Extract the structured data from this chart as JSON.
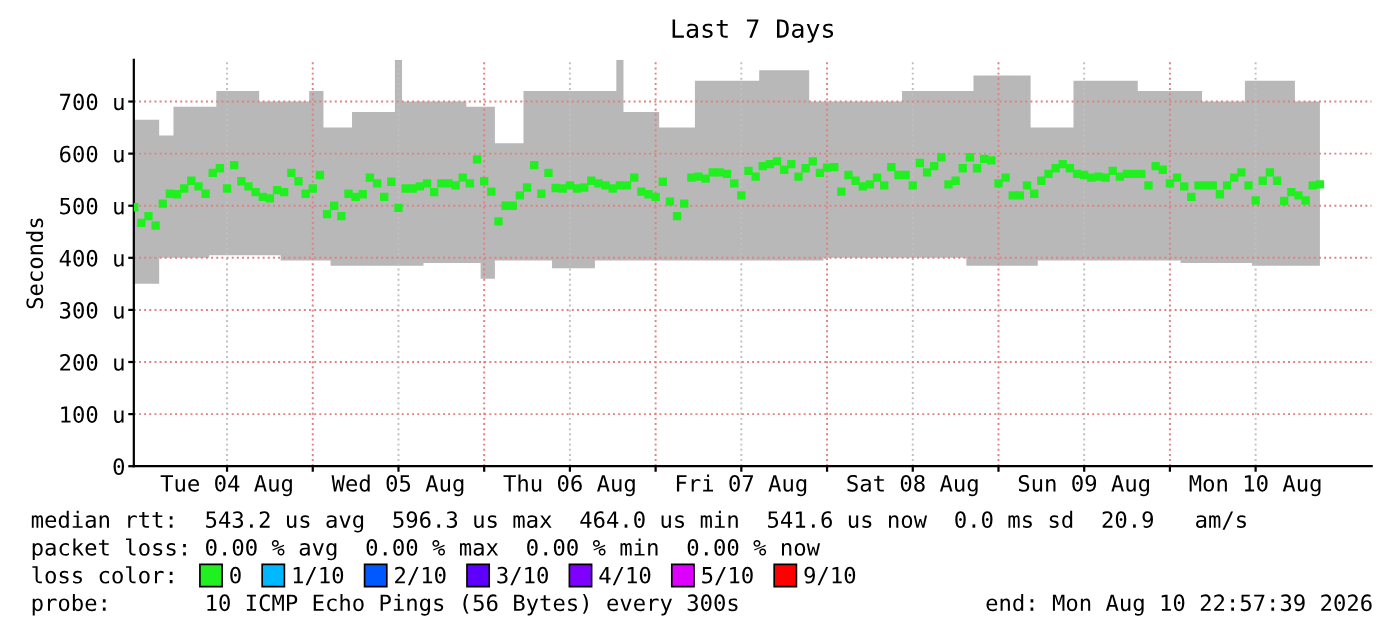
{
  "chart_data": {
    "type": "scatter",
    "title": "Last 7 Days",
    "ylabel": "Seconds",
    "x": [
      "2026-08-03T23:00",
      "2026-08-04T00:00",
      "2026-08-04T01:00",
      "2026-08-04T02:00",
      "2026-08-04T03:00",
      "2026-08-04T04:00",
      "2026-08-04T05:00",
      "2026-08-04T06:00",
      "2026-08-04T07:00",
      "2026-08-04T08:00",
      "2026-08-04T09:00",
      "2026-08-04T10:00",
      "2026-08-04T11:00",
      "2026-08-04T12:00",
      "2026-08-04T13:00",
      "2026-08-04T14:00",
      "2026-08-04T15:00",
      "2026-08-04T16:00",
      "2026-08-04T17:00",
      "2026-08-04T18:00",
      "2026-08-04T19:00",
      "2026-08-04T20:00",
      "2026-08-04T21:00",
      "2026-08-04T22:00",
      "2026-08-04T23:00",
      "2026-08-05T00:00",
      "2026-08-05T01:00",
      "2026-08-05T02:00",
      "2026-08-05T03:00",
      "2026-08-05T04:00",
      "2026-08-05T05:00",
      "2026-08-05T06:00",
      "2026-08-05T07:00",
      "2026-08-05T08:00",
      "2026-08-05T09:00",
      "2026-08-05T10:00",
      "2026-08-05T11:00",
      "2026-08-05T12:00",
      "2026-08-05T13:00",
      "2026-08-05T14:00",
      "2026-08-05T15:00",
      "2026-08-05T16:00",
      "2026-08-05T17:00",
      "2026-08-05T18:00",
      "2026-08-05T19:00",
      "2026-08-05T20:00",
      "2026-08-05T21:00",
      "2026-08-05T22:00",
      "2026-08-05T23:00",
      "2026-08-06T00:00",
      "2026-08-06T01:00",
      "2026-08-06T02:00",
      "2026-08-06T03:00",
      "2026-08-06T04:00",
      "2026-08-06T05:00",
      "2026-08-06T06:00",
      "2026-08-06T07:00",
      "2026-08-06T08:00",
      "2026-08-06T09:00",
      "2026-08-06T10:00",
      "2026-08-06T11:00",
      "2026-08-06T12:00",
      "2026-08-06T13:00",
      "2026-08-06T14:00",
      "2026-08-06T15:00",
      "2026-08-06T16:00",
      "2026-08-06T17:00",
      "2026-08-06T18:00",
      "2026-08-06T19:00",
      "2026-08-06T20:00",
      "2026-08-06T21:00",
      "2026-08-06T22:00",
      "2026-08-06T23:00",
      "2026-08-07T00:00",
      "2026-08-07T01:00",
      "2026-08-07T02:00",
      "2026-08-07T03:00",
      "2026-08-07T04:00",
      "2026-08-07T05:00",
      "2026-08-07T06:00",
      "2026-08-07T07:00",
      "2026-08-07T08:00",
      "2026-08-07T09:00",
      "2026-08-07T10:00",
      "2026-08-07T11:00",
      "2026-08-07T12:00",
      "2026-08-07T13:00",
      "2026-08-07T14:00",
      "2026-08-07T15:00",
      "2026-08-07T16:00",
      "2026-08-07T17:00",
      "2026-08-07T18:00",
      "2026-08-07T19:00",
      "2026-08-07T20:00",
      "2026-08-07T21:00",
      "2026-08-07T22:00",
      "2026-08-07T23:00",
      "2026-08-08T00:00",
      "2026-08-08T01:00",
      "2026-08-08T02:00",
      "2026-08-08T03:00",
      "2026-08-08T04:00",
      "2026-08-08T05:00",
      "2026-08-08T06:00",
      "2026-08-08T07:00",
      "2026-08-08T08:00",
      "2026-08-08T09:00",
      "2026-08-08T10:00",
      "2026-08-08T11:00",
      "2026-08-08T12:00",
      "2026-08-08T13:00",
      "2026-08-08T14:00",
      "2026-08-08T15:00",
      "2026-08-08T16:00",
      "2026-08-08T17:00",
      "2026-08-08T18:00",
      "2026-08-08T19:00",
      "2026-08-08T20:00",
      "2026-08-08T21:00",
      "2026-08-08T22:00",
      "2026-08-08T23:00",
      "2026-08-09T00:00",
      "2026-08-09T01:00",
      "2026-08-09T02:00",
      "2026-08-09T03:00",
      "2026-08-09T04:00",
      "2026-08-09T05:00",
      "2026-08-09T06:00",
      "2026-08-09T07:00",
      "2026-08-09T08:00",
      "2026-08-09T09:00",
      "2026-08-09T10:00",
      "2026-08-09T11:00",
      "2026-08-09T12:00",
      "2026-08-09T13:00",
      "2026-08-09T14:00",
      "2026-08-09T15:00",
      "2026-08-09T16:00",
      "2026-08-09T17:00",
      "2026-08-09T18:00",
      "2026-08-09T19:00",
      "2026-08-09T20:00",
      "2026-08-09T21:00",
      "2026-08-09T22:00",
      "2026-08-09T23:00",
      "2026-08-10T00:00",
      "2026-08-10T01:00",
      "2026-08-10T02:00",
      "2026-08-10T03:00",
      "2026-08-10T04:00",
      "2026-08-10T05:00",
      "2026-08-10T06:00",
      "2026-08-10T07:00",
      "2026-08-10T08:00",
      "2026-08-10T09:00",
      "2026-08-10T10:00",
      "2026-08-10T11:00",
      "2026-08-10T12:00",
      "2026-08-10T13:00",
      "2026-08-10T14:00",
      "2026-08-10T15:00",
      "2026-08-10T16:00",
      "2026-08-10T17:00",
      "2026-08-10T18:00",
      "2026-08-10T19:00",
      "2026-08-10T20:00",
      "2026-08-10T21:00"
    ],
    "series": [
      {
        "name": "0",
        "color": "#20f020",
        "values": [
          497,
          467,
          480,
          462,
          504,
          523,
          522,
          533,
          548,
          537,
          523,
          563,
          572,
          533,
          578,
          547,
          537,
          526,
          517,
          514,
          530,
          526,
          563,
          547,
          523,
          533,
          559,
          484,
          500,
          480,
          523,
          517,
          522,
          554,
          543,
          517,
          546,
          496,
          533,
          533,
          537,
          543,
          526,
          543,
          543,
          539,
          554,
          543,
          589,
          547,
          527,
          470,
          500,
          500,
          520,
          535,
          578,
          523,
          563,
          534,
          533,
          539,
          533,
          535,
          548,
          543,
          539,
          533,
          539,
          539,
          554,
          527,
          522,
          517,
          546,
          508,
          480,
          504,
          554,
          556,
          552,
          564,
          564,
          561,
          543,
          520,
          567,
          556,
          576,
          580,
          585,
          569,
          580,
          556,
          572,
          585,
          563,
          573,
          574,
          527,
          559,
          548,
          537,
          541,
          554,
          539,
          574,
          559,
          559,
          539,
          582,
          564,
          576,
          593,
          541,
          548,
          572,
          593,
          572,
          590,
          587,
          543,
          554,
          520,
          520,
          539,
          523,
          548,
          561,
          572,
          580,
          572,
          561,
          559,
          554,
          556,
          554,
          567,
          556,
          561,
          561,
          561,
          539,
          576,
          569,
          543,
          554,
          537,
          517,
          539,
          539,
          539,
          522,
          539,
          554,
          564,
          539,
          510,
          548,
          564,
          548,
          509,
          526,
          520,
          510,
          539,
          541
        ],
        "lower": [
          350,
          350,
          350,
          350,
          400,
          400,
          400,
          400,
          400,
          400,
          400,
          405,
          405,
          405,
          405,
          405,
          405,
          405,
          405,
          405,
          405,
          395,
          395,
          395,
          395,
          395,
          395,
          395,
          385,
          385,
          385,
          385,
          385,
          385,
          385,
          385,
          385,
          385,
          385,
          385,
          385,
          390,
          390,
          390,
          390,
          390,
          390,
          390,
          390,
          360,
          360,
          395,
          395,
          395,
          395,
          395,
          395,
          395,
          395,
          380,
          380,
          380,
          380,
          380,
          380,
          395,
          395,
          395,
          395,
          395,
          395,
          395,
          395,
          395,
          395,
          395,
          395,
          395,
          395,
          395,
          395,
          395,
          395,
          395,
          395,
          395,
          395,
          395,
          395,
          395,
          395,
          395,
          395,
          395,
          395,
          395,
          395,
          400,
          400,
          400,
          400,
          400,
          400,
          400,
          400,
          400,
          400,
          400,
          400,
          400,
          400,
          400,
          400,
          400,
          400,
          400,
          400,
          385,
          385,
          385,
          385,
          385,
          385,
          385,
          385,
          385,
          385,
          395,
          395,
          395,
          395,
          395,
          395,
          395,
          395,
          395,
          395,
          395,
          395,
          395,
          395,
          395,
          395,
          395,
          395,
          395,
          395,
          390,
          390,
          390,
          390,
          390,
          390,
          390,
          390,
          390,
          390,
          385,
          385,
          385,
          385,
          385,
          385,
          385,
          385,
          385,
          385
        ],
        "upper": [
          665,
          665,
          665,
          665,
          635,
          635,
          690,
          690,
          690,
          690,
          690,
          690,
          720,
          720,
          720,
          720,
          720,
          720,
          700,
          700,
          700,
          700,
          700,
          700,
          700,
          720,
          720,
          650,
          650,
          650,
          650,
          680,
          680,
          680,
          680,
          680,
          680,
          780,
          700,
          700,
          700,
          700,
          700,
          700,
          700,
          700,
          700,
          690,
          690,
          690,
          690,
          620,
          620,
          620,
          620,
          720,
          720,
          720,
          720,
          720,
          720,
          720,
          720,
          720,
          720,
          720,
          720,
          720,
          780,
          680,
          680,
          680,
          680,
          680,
          650,
          650,
          650,
          650,
          650,
          740,
          740,
          740,
          740,
          740,
          740,
          740,
          740,
          740,
          760,
          760,
          760,
          760,
          760,
          760,
          760,
          700,
          700,
          700,
          700,
          700,
          700,
          700,
          700,
          700,
          700,
          700,
          700,
          700,
          720,
          720,
          720,
          720,
          720,
          720,
          720,
          720,
          720,
          720,
          750,
          750,
          750,
          750,
          750,
          750,
          750,
          750,
          650,
          650,
          650,
          650,
          650,
          650,
          740,
          740,
          740,
          740,
          740,
          740,
          740,
          740,
          740,
          720,
          720,
          720,
          720,
          720,
          720,
          720,
          720,
          720,
          700,
          700,
          700,
          700,
          700,
          700,
          740,
          740,
          740,
          740,
          740,
          740,
          740,
          700,
          700,
          700,
          700
        ]
      },
      {
        "name": "1/10",
        "color": "#00b8ff",
        "values": [
          null,
          null,
          null,
          null,
          null,
          null,
          null,
          null,
          null,
          null,
          null,
          null,
          null,
          null,
          null,
          null,
          null,
          null,
          null,
          null,
          null,
          null,
          null,
          null,
          null,
          null,
          null,
          null,
          null,
          null,
          null,
          null,
          null,
          null,
          null,
          null,
          null,
          null,
          null,
          null,
          null,
          null,
          null,
          null,
          null,
          null,
          null,
          null,
          null,
          null,
          null,
          null,
          null,
          null,
          null,
          null,
          null,
          null,
          null,
          null,
          null,
          null,
          null,
          null,
          null,
          null,
          null,
          null,
          null,
          null,
          null,
          null,
          null,
          null,
          null,
          null,
          null,
          null,
          null,
          null,
          null,
          null,
          null,
          null,
          null,
          null,
          null,
          null,
          null,
          null,
          null,
          null,
          null,
          null,
          null,
          null,
          null,
          null,
          null,
          null,
          null,
          null,
          null,
          null,
          null,
          null,
          null,
          null,
          null,
          null,
          null,
          null,
          null,
          null,
          null,
          null,
          null,
          null,
          null,
          null,
          null,
          null,
          null,
          null,
          null,
          null,
          null,
          null,
          null,
          null,
          null,
          null,
          null,
          null,
          null,
          null,
          null,
          null,
          null,
          null,
          null,
          null,
          null,
          null,
          null,
          null,
          null,
          null,
          null,
          null,
          null,
          null,
          null,
          null,
          null,
          null,
          null,
          null,
          null,
          null,
          null,
          null,
          null,
          null,
          null,
          null,
          null
        ]
      },
      {
        "name": "2/10",
        "color": "#0059ff",
        "values": [
          null,
          null,
          null,
          null,
          null,
          null,
          null,
          null,
          null,
          null,
          null,
          null,
          null,
          null,
          null,
          null,
          null,
          null,
          null,
          null,
          null,
          null,
          null,
          null,
          null,
          null,
          null,
          null,
          null,
          null,
          null,
          null,
          null,
          null,
          null,
          null,
          null,
          null,
          null,
          null,
          null,
          null,
          null,
          null,
          null,
          null,
          null,
          null,
          null,
          null,
          null,
          null,
          null,
          null,
          null,
          null,
          null,
          null,
          null,
          null,
          null,
          null,
          null,
          null,
          null,
          null,
          null,
          null,
          null,
          null,
          null,
          null,
          null,
          null,
          null,
          null,
          null,
          null,
          null,
          null,
          null,
          null,
          null,
          null,
          null,
          null,
          null,
          null,
          null,
          null,
          null,
          null,
          null,
          null,
          null,
          null,
          null,
          null,
          null,
          null,
          null,
          null,
          null,
          null,
          null,
          null,
          null,
          null,
          null,
          null,
          null,
          null,
          null,
          null,
          null,
          null,
          null,
          null,
          null,
          null,
          null,
          null,
          null,
          null,
          null,
          null,
          null,
          null,
          null,
          null,
          null,
          null,
          null,
          null,
          null,
          null,
          null,
          null,
          null,
          null,
          null,
          null,
          null,
          null,
          null,
          null,
          null,
          null,
          null,
          null,
          null,
          null,
          null,
          null,
          null,
          null,
          null,
          null,
          null,
          null,
          null,
          null,
          null,
          null,
          null,
          null,
          null
        ]
      },
      {
        "name": "3/10",
        "color": "#5e00ff",
        "values": [
          null,
          null,
          null,
          null,
          null,
          null,
          null,
          null,
          null,
          null,
          null,
          null,
          null,
          null,
          null,
          null,
          null,
          null,
          null,
          null,
          null,
          null,
          null,
          null,
          null,
          null,
          null,
          null,
          null,
          null,
          null,
          null,
          null,
          null,
          null,
          null,
          null,
          null,
          null,
          null,
          null,
          null,
          null,
          null,
          null,
          null,
          null,
          null,
          null,
          null,
          null,
          null,
          null,
          null,
          null,
          null,
          null,
          null,
          null,
          null,
          null,
          null,
          null,
          null,
          null,
          null,
          null,
          null,
          null,
          null,
          null,
          null,
          null,
          null,
          null,
          null,
          null,
          null,
          null,
          null,
          null,
          null,
          null,
          null,
          null,
          null,
          null,
          null,
          null,
          null,
          null,
          null,
          null,
          null,
          null,
          null,
          null,
          null,
          null,
          null,
          null,
          null,
          null,
          null,
          null,
          null,
          null,
          null,
          null,
          null,
          null,
          null,
          null,
          null,
          null,
          null,
          null,
          null,
          null,
          null,
          null,
          null,
          null,
          null,
          null,
          null,
          null,
          null,
          null,
          null,
          null,
          null,
          null,
          null,
          null,
          null,
          null,
          null,
          null,
          null,
          null,
          null,
          null,
          null,
          null,
          null,
          null,
          null,
          null,
          null,
          null,
          null,
          null,
          null,
          null,
          null,
          null,
          null,
          null,
          null,
          null,
          null,
          null,
          null,
          null,
          null,
          null
        ]
      },
      {
        "name": "4/10",
        "color": "#7e00ff",
        "values": [
          null,
          null,
          null,
          null,
          null,
          null,
          null,
          null,
          null,
          null,
          null,
          null,
          null,
          null,
          null,
          null,
          null,
          null,
          null,
          null,
          null,
          null,
          null,
          null,
          null,
          null,
          null,
          null,
          null,
          null,
          null,
          null,
          null,
          null,
          null,
          null,
          null,
          null,
          null,
          null,
          null,
          null,
          null,
          null,
          null,
          null,
          null,
          null,
          null,
          null,
          null,
          null,
          null,
          null,
          null,
          null,
          null,
          null,
          null,
          null,
          null,
          null,
          null,
          null,
          null,
          null,
          null,
          null,
          null,
          null,
          null,
          null,
          null,
          null,
          null,
          null,
          null,
          null,
          null,
          null,
          null,
          null,
          null,
          null,
          null,
          null,
          null,
          null,
          null,
          null,
          null,
          null,
          null,
          null,
          null,
          null,
          null,
          null,
          null,
          null,
          null,
          null,
          null,
          null,
          null,
          null,
          null,
          null,
          null,
          null,
          null,
          null,
          null,
          null,
          null,
          null,
          null,
          null,
          null,
          null,
          null,
          null,
          null,
          null,
          null,
          null,
          null,
          null,
          null,
          null,
          null,
          null,
          null,
          null,
          null,
          null,
          null,
          null,
          null,
          null,
          null,
          null,
          null,
          null,
          null,
          null,
          null,
          null,
          null,
          null,
          null,
          null,
          null,
          null,
          null,
          null,
          null,
          null,
          null,
          null,
          null,
          null,
          null,
          null,
          null,
          null,
          null
        ]
      },
      {
        "name": "5/10",
        "color": "#dd00ff",
        "values": [
          null,
          null,
          null,
          null,
          null,
          null,
          null,
          null,
          null,
          null,
          null,
          null,
          null,
          null,
          null,
          null,
          null,
          null,
          null,
          null,
          null,
          null,
          null,
          null,
          null,
          null,
          null,
          null,
          null,
          null,
          null,
          null,
          null,
          null,
          null,
          null,
          null,
          null,
          null,
          null,
          null,
          null,
          null,
          null,
          null,
          null,
          null,
          null,
          null,
          null,
          null,
          null,
          null,
          null,
          null,
          null,
          null,
          null,
          null,
          null,
          null,
          null,
          null,
          null,
          null,
          null,
          null,
          null,
          null,
          null,
          null,
          null,
          null,
          null,
          null,
          null,
          null,
          null,
          null,
          null,
          null,
          null,
          null,
          null,
          null,
          null,
          null,
          null,
          null,
          null,
          null,
          null,
          null,
          null,
          null,
          null,
          null,
          null,
          null,
          null,
          null,
          null,
          null,
          null,
          null,
          null,
          null,
          null,
          null,
          null,
          null,
          null,
          null,
          null,
          null,
          null,
          null,
          null,
          null,
          null,
          null,
          null,
          null,
          null,
          null,
          null,
          null,
          null,
          null,
          null,
          null,
          null,
          null,
          null,
          null,
          null,
          null,
          null,
          null,
          null,
          null,
          null,
          null,
          null,
          null,
          null,
          null,
          null,
          null,
          null,
          null,
          null,
          null,
          null,
          null,
          null,
          null,
          null,
          null,
          null,
          null,
          null,
          null,
          null,
          null,
          null,
          null
        ]
      },
      {
        "name": "9/10",
        "color": "#ff0000",
        "values": [
          null,
          null,
          null,
          null,
          null,
          null,
          null,
          null,
          null,
          null,
          null,
          null,
          null,
          null,
          null,
          null,
          null,
          null,
          null,
          null,
          null,
          null,
          null,
          null,
          null,
          null,
          null,
          null,
          null,
          null,
          null,
          null,
          null,
          null,
          null,
          null,
          null,
          null,
          null,
          null,
          null,
          null,
          null,
          null,
          null,
          null,
          null,
          null,
          null,
          null,
          null,
          null,
          null,
          null,
          null,
          null,
          null,
          null,
          null,
          null,
          null,
          null,
          null,
          null,
          null,
          null,
          null,
          null,
          null,
          null,
          null,
          null,
          null,
          null,
          null,
          null,
          null,
          null,
          null,
          null,
          null,
          null,
          null,
          null,
          null,
          null,
          null,
          null,
          null,
          null,
          null,
          null,
          null,
          null,
          null,
          null,
          null,
          null,
          null,
          null,
          null,
          null,
          null,
          null,
          null,
          null,
          null,
          null,
          null,
          null,
          null,
          null,
          null,
          null,
          null,
          null,
          null,
          null,
          null,
          null,
          null,
          null,
          null,
          null,
          null,
          null,
          null,
          null,
          null,
          null,
          null,
          null,
          null,
          null,
          null,
          null,
          null,
          null,
          null,
          null,
          null,
          null,
          null,
          null,
          null,
          null,
          null,
          null,
          null,
          null,
          null,
          null,
          null,
          null,
          null,
          null,
          null,
          null,
          null,
          null,
          null,
          null,
          null,
          null,
          null,
          null,
          null
        ]
      }
    ],
    "marker": "square",
    "xlim": [
      "2026-08-03T22:57",
      "2026-08-11T04:15"
    ],
    "xticks": [
      {
        "value": "2026-08-04T12:00",
        "label": "Tue 04 Aug"
      },
      {
        "value": "2026-08-05T00:00",
        "label": null
      },
      {
        "value": "2026-08-05T12:00",
        "label": "Wed 05 Aug"
      },
      {
        "value": "2026-08-06T00:00",
        "label": null
      },
      {
        "value": "2026-08-06T12:00",
        "label": "Thu 06 Aug"
      },
      {
        "value": "2026-08-07T00:00",
        "label": null
      },
      {
        "value": "2026-08-07T12:00",
        "label": "Fri 07 Aug"
      },
      {
        "value": "2026-08-08T00:00",
        "label": null
      },
      {
        "value": "2026-08-08T12:00",
        "label": "Sat 08 Aug"
      },
      {
        "value": "2026-08-09T00:00",
        "label": null
      },
      {
        "value": "2026-08-09T12:00",
        "label": "Sun 09 Aug"
      },
      {
        "value": "2026-08-10T00:00",
        "label": null
      },
      {
        "value": "2026-08-10T12:00",
        "label": "Mon 10 Aug"
      }
    ],
    "ylim": [
      0,
      780
    ],
    "yticks": [
      0,
      {
        "value": 100,
        "label": "100 u"
      },
      {
        "value": 200,
        "label": "200 u"
      },
      {
        "value": 300,
        "label": "300 u"
      },
      {
        "value": 400,
        "label": "400 u"
      },
      {
        "value": 500,
        "label": "500 u"
      },
      {
        "value": 600,
        "label": "600 u"
      },
      {
        "value": 700,
        "label": "700 u"
      }
    ],
    "grid": true,
    "legend": "bottom",
    "annotations": [
      "median rtt:  543.2 us avg  596.3 us max  464.0 us min  541.6 us now  0.0 ms sd  20.9   am/s",
      "packet loss: 0.00 % avg  0.00 % max  0.00 % min  0.00 % now",
      "loss color:",
      "probe:       10 ICMP Echo Pings (56 Bytes) every 300s",
      "end: Mon Aug 10 22:57:39 2026"
    ]
  }
}
